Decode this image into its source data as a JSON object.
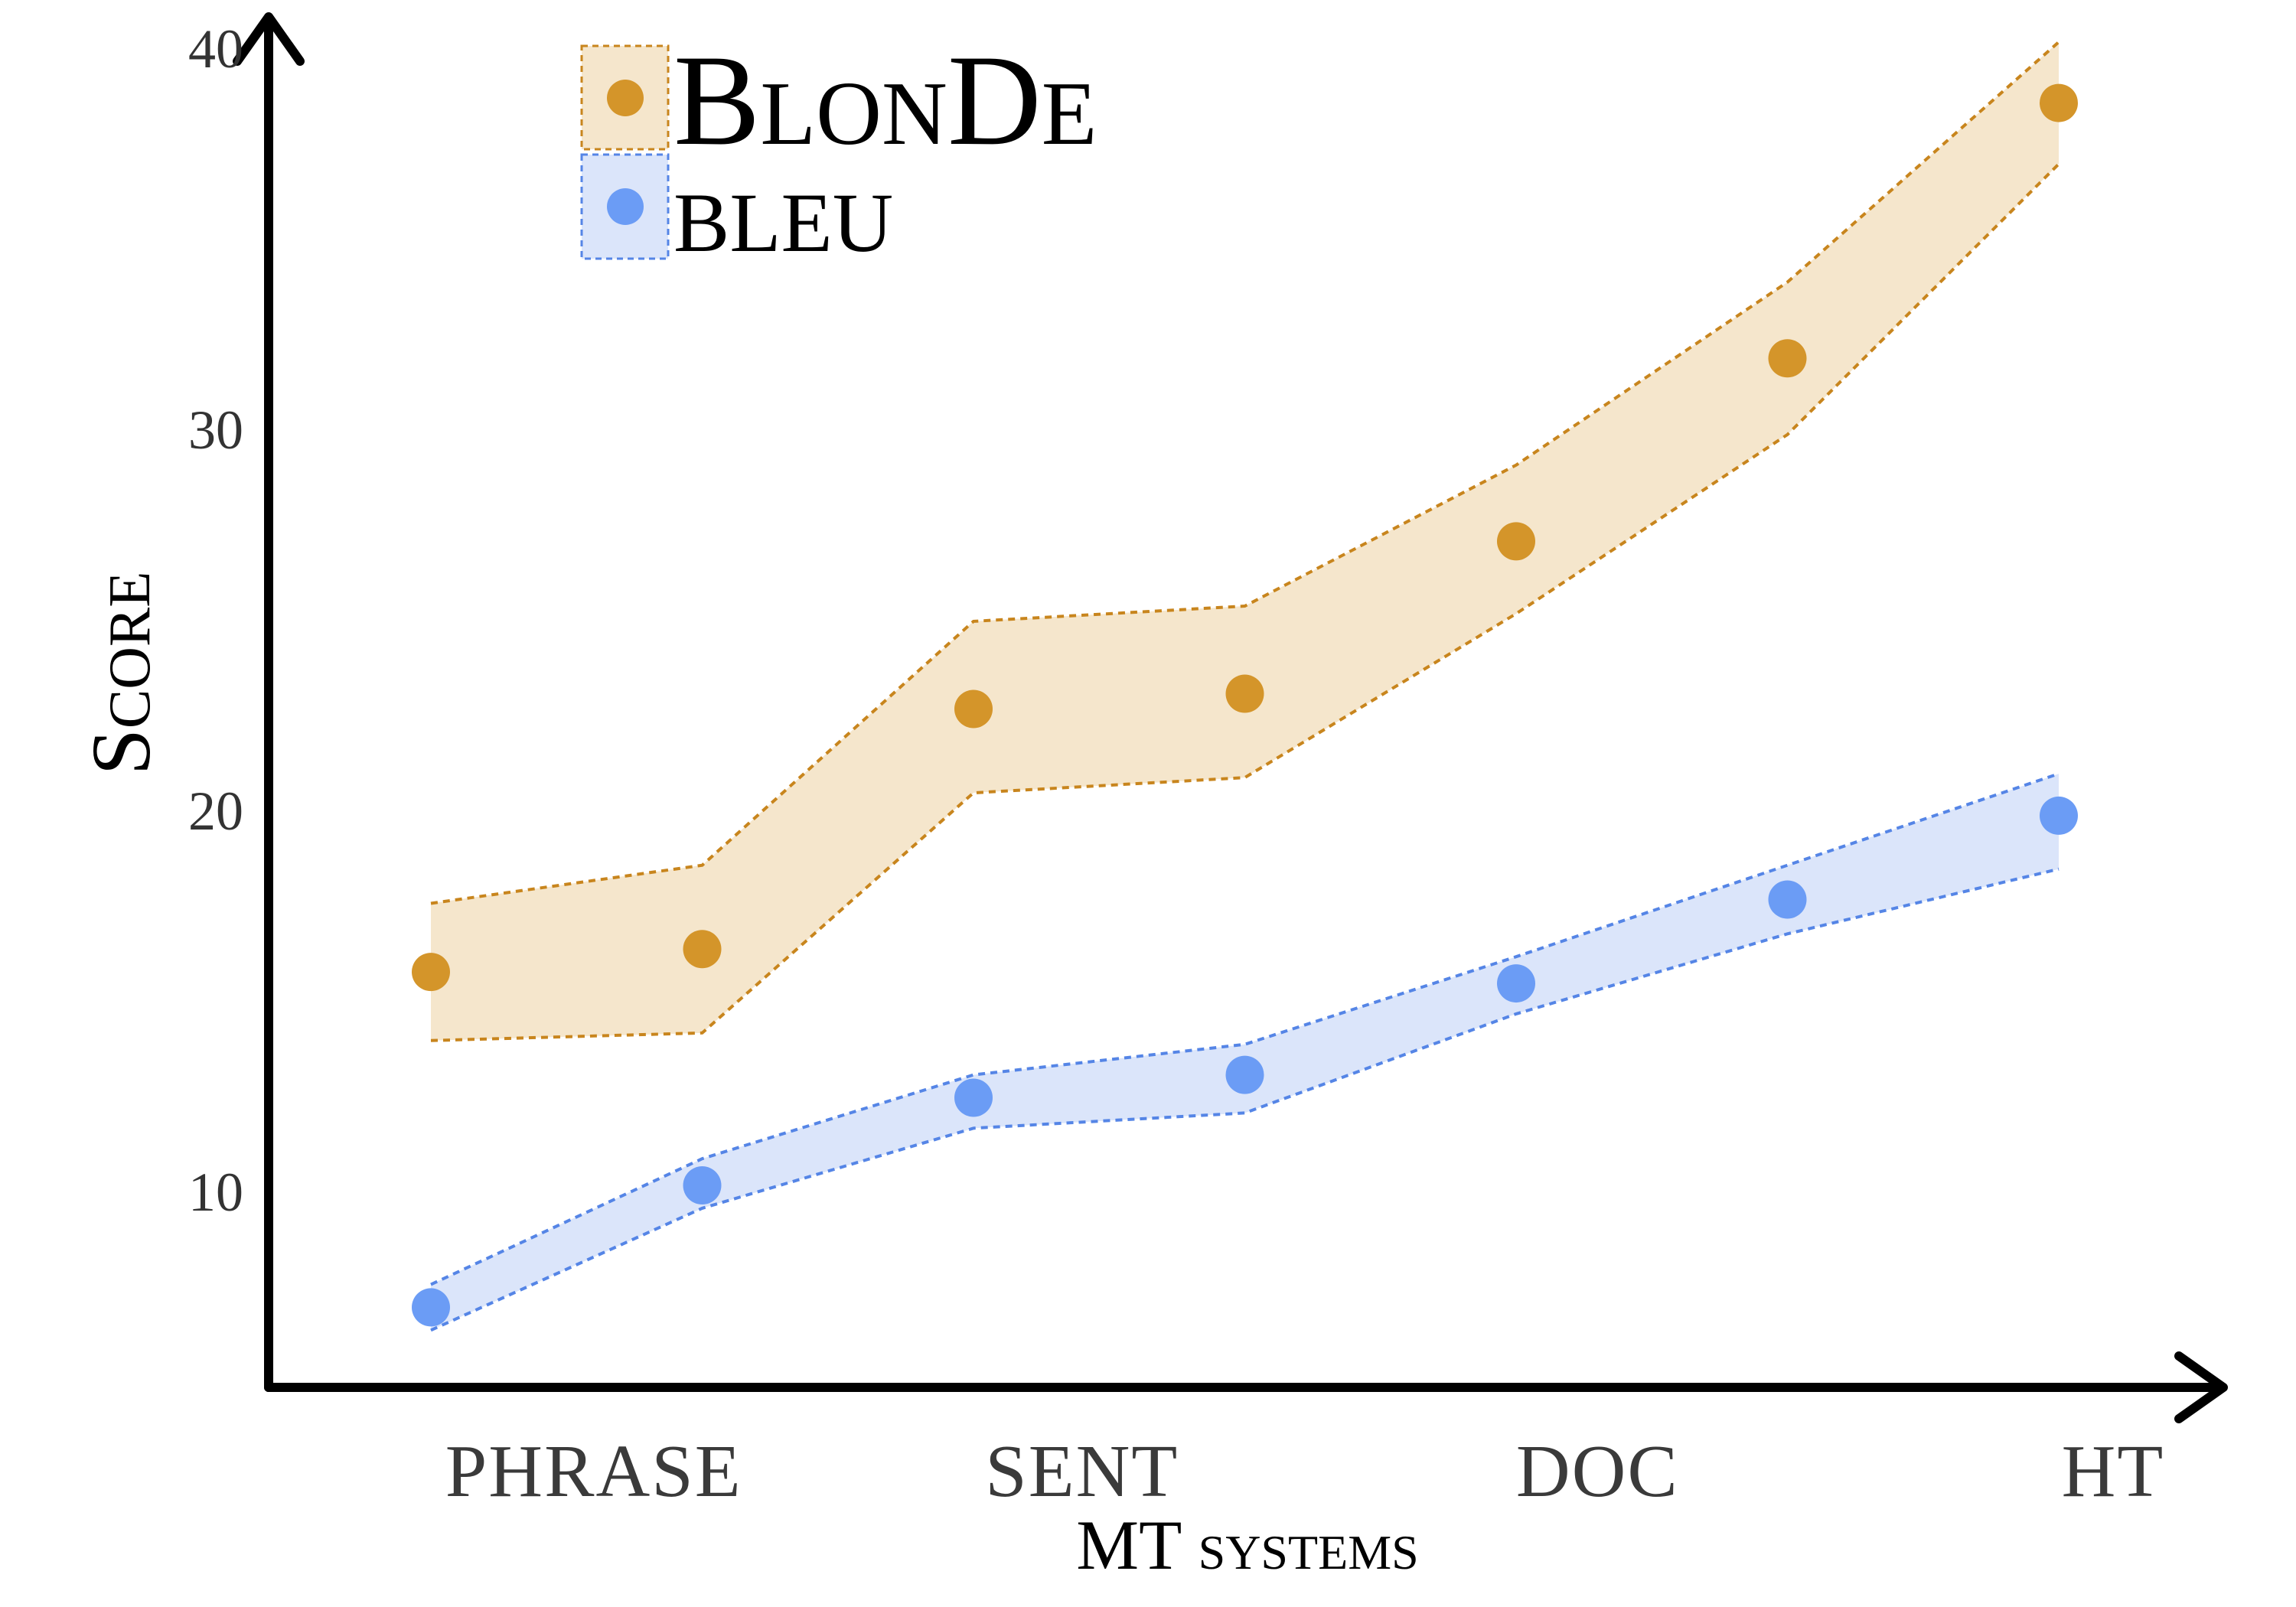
{
  "chart_data": {
    "type": "scatter",
    "x": [
      1,
      2,
      3,
      4,
      5,
      6,
      7
    ],
    "xlabel": "MT systems",
    "ylabel": "Score",
    "ylim": [
      4.8,
      40.6
    ],
    "yticks": [
      10,
      20,
      30,
      40
    ],
    "ytick_labels": [
      "10",
      "20",
      "30",
      "40"
    ],
    "categories": [
      {
        "label": "PHRASE",
        "x": 1.6
      },
      {
        "label": "SENT",
        "x": 3.4
      },
      {
        "label": "DOC",
        "x": 5.3
      },
      {
        "label": "HT",
        "x": 7.2
      }
    ],
    "grid": false,
    "legend": "top-left",
    "series": [
      {
        "name": "BlonDe",
        "color": "#d4952a",
        "band_color": "#f5e6cc",
        "line_color": "#c8851d",
        "values": [
          15.7,
          16.3,
          22.6,
          23.0,
          27.0,
          31.8,
          38.5
        ],
        "upper": [
          17.5,
          18.5,
          24.9,
          25.3,
          29.0,
          33.8,
          40.1
        ],
        "lower": [
          13.9,
          14.1,
          20.4,
          20.8,
          25.1,
          29.8,
          36.9
        ]
      },
      {
        "name": "BLEU",
        "color": "#6b9cf5",
        "band_color": "#dbe5fa",
        "line_color": "#5585e6",
        "values": [
          6.9,
          10.1,
          12.4,
          13.0,
          15.4,
          17.6,
          19.8
        ],
        "upper": [
          7.5,
          10.8,
          13.0,
          13.8,
          16.1,
          18.5,
          20.9
        ],
        "lower": [
          6.3,
          9.5,
          11.6,
          12.0,
          14.6,
          16.7,
          18.4
        ]
      }
    ]
  }
}
